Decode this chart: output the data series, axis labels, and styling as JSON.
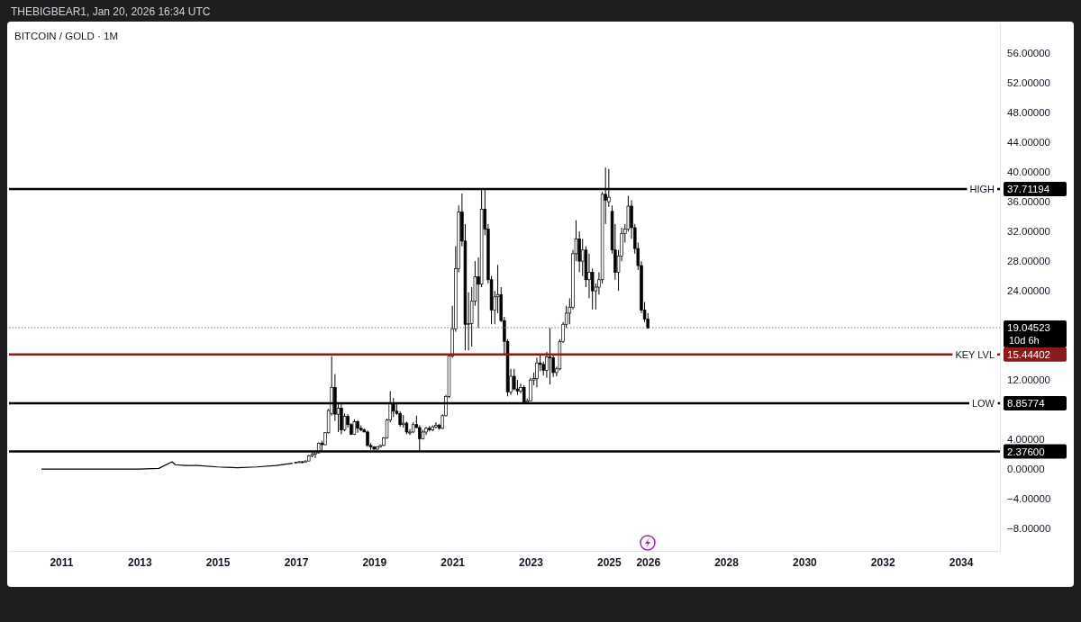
{
  "chart_data": {
    "type": "candlestick",
    "title": "BITCOIN / GOLD · 1M",
    "annotations": [
      "THEBIGBEAR1, Jan 20, 2026 16:34 UTC"
    ],
    "xlim": [
      "2009-09",
      "2035-01"
    ],
    "ylim": [
      -11,
      60
    ],
    "xticks": [
      "2011",
      "2013",
      "2015",
      "2017",
      "2019",
      "2021",
      "2023",
      "2025",
      "2026",
      "2028",
      "2030",
      "2032",
      "2034"
    ],
    "yticks": [
      {
        "value": -8,
        "label": "−8.00000"
      },
      {
        "value": -4,
        "label": "−4.00000"
      },
      {
        "value": 0,
        "label": "0.00000"
      },
      {
        "value": 4,
        "label": "4.00000"
      },
      {
        "value": 12,
        "label": "12.00000"
      },
      {
        "value": 24,
        "label": "24.00000"
      },
      {
        "value": 28,
        "label": "28.00000"
      },
      {
        "value": 32,
        "label": "32.00000"
      },
      {
        "value": 36,
        "label": "36.00000"
      },
      {
        "value": 40,
        "label": "40.00000"
      },
      {
        "value": 44,
        "label": "44.00000"
      },
      {
        "value": 48,
        "label": "48.00000"
      },
      {
        "value": 52,
        "label": "52.00000"
      },
      {
        "value": 56,
        "label": "56.00000"
      },
      {
        "value": 37.71194,
        "label": "37.71194"
      },
      {
        "value": 19.04523,
        "label": "19.04523"
      },
      {
        "value": 15.44402,
        "label": "15.44402"
      },
      {
        "value": 8.85774,
        "label": "8.85774"
      },
      {
        "value": 2.376,
        "label": "2.37600"
      }
    ],
    "ref_lines": [
      {
        "axis": "y",
        "value": 37.71194,
        "label": "HIGH",
        "color": "#000000"
      },
      {
        "axis": "y",
        "value": 15.44402,
        "label": "KEY LVL",
        "color": "#8b1a1a"
      },
      {
        "axis": "y",
        "value": 8.85774,
        "label": "LOW",
        "color": "#000000"
      },
      {
        "axis": "y",
        "value": 2.376,
        "label": null,
        "color": "#000000"
      },
      {
        "axis": "y",
        "value": 19.04523,
        "label": "10d 6h",
        "color": "#787b86",
        "line_style": "dotted"
      }
    ],
    "series": [
      {
        "type": "line",
        "color": "#000000",
        "x": [
          "2010-07",
          "2011-01",
          "2011-07",
          "2012-01",
          "2012-07",
          "2013-01",
          "2013-07",
          "2013-11",
          "2013-12",
          "2014-03",
          "2014-07",
          "2015-01",
          "2015-07",
          "2016-01",
          "2016-07",
          "2016-12"
        ],
        "values": [
          0.0,
          0.0,
          0.0,
          0.0,
          0.0,
          0.0,
          0.1,
          1.0,
          0.6,
          0.5,
          0.5,
          0.3,
          0.2,
          0.3,
          0.5,
          0.8
        ]
      },
      {
        "color": "#000000",
        "x": [
          "2017-01",
          "2017-02",
          "2017-03",
          "2017-04",
          "2017-05",
          "2017-06",
          "2017-07",
          "2017-08",
          "2017-09",
          "2017-10",
          "2017-11",
          "2017-12",
          "2018-01",
          "2018-02",
          "2018-03",
          "2018-04",
          "2018-05",
          "2018-06",
          "2018-07",
          "2018-08",
          "2018-09",
          "2018-10",
          "2018-11",
          "2018-12",
          "2019-01",
          "2019-02",
          "2019-03",
          "2019-04",
          "2019-05",
          "2019-06",
          "2019-07",
          "2019-08",
          "2019-09",
          "2019-10",
          "2019-11",
          "2019-12",
          "2020-01",
          "2020-02",
          "2020-03",
          "2020-04",
          "2020-05",
          "2020-06",
          "2020-07",
          "2020-08",
          "2020-09",
          "2020-10",
          "2020-11",
          "2020-12",
          "2021-01",
          "2021-02",
          "2021-03",
          "2021-04",
          "2021-05",
          "2021-06",
          "2021-07",
          "2021-08",
          "2021-09",
          "2021-10",
          "2021-11",
          "2021-12",
          "2022-01",
          "2022-02",
          "2022-03",
          "2022-04",
          "2022-05",
          "2022-06",
          "2022-07",
          "2022-08",
          "2022-09",
          "2022-10",
          "2022-11",
          "2022-12",
          "2023-01",
          "2023-02",
          "2023-03",
          "2023-04",
          "2023-05",
          "2023-06",
          "2023-07",
          "2023-08",
          "2023-09",
          "2023-10",
          "2023-11",
          "2023-12",
          "2024-01",
          "2024-02",
          "2024-03",
          "2024-04",
          "2024-05",
          "2024-06",
          "2024-07",
          "2024-08",
          "2024-09",
          "2024-10",
          "2024-11",
          "2024-12",
          "2025-01",
          "2025-02",
          "2025-03",
          "2025-04",
          "2025-05",
          "2025-06",
          "2025-07",
          "2025-08",
          "2025-09",
          "2025-10",
          "2025-11",
          "2025-12",
          "2026-01"
        ],
        "ohlc": [
          [
            0.85,
            1.0,
            0.8,
            0.95
          ],
          [
            0.95,
            1.1,
            0.9,
            1.0
          ],
          [
            1.0,
            1.1,
            0.8,
            0.95
          ],
          [
            0.95,
            1.2,
            0.9,
            1.1
          ],
          [
            1.1,
            1.9,
            1.05,
            1.8
          ],
          [
            1.8,
            2.3,
            1.6,
            2.0
          ],
          [
            2.0,
            2.3,
            1.5,
            2.2
          ],
          [
            2.2,
            3.6,
            2.1,
            3.5
          ],
          [
            3.5,
            3.8,
            2.4,
            3.3
          ],
          [
            3.3,
            5.0,
            3.2,
            4.9
          ],
          [
            4.9,
            8.1,
            4.8,
            7.9
          ],
          [
            7.5,
            15.2,
            7.2,
            11.0
          ],
          [
            11.0,
            12.8,
            6.5,
            7.4
          ],
          [
            7.4,
            9.0,
            5.0,
            8.2
          ],
          [
            8.2,
            8.8,
            4.7,
            5.3
          ],
          [
            5.3,
            7.5,
            5.1,
            7.1
          ],
          [
            7.1,
            7.4,
            5.6,
            6.0
          ],
          [
            6.0,
            6.2,
            4.6,
            4.7
          ],
          [
            4.7,
            6.7,
            4.6,
            6.4
          ],
          [
            6.4,
            6.6,
            4.9,
            5.5
          ],
          [
            5.5,
            5.9,
            5.1,
            5.3
          ],
          [
            5.3,
            5.5,
            5.0,
            5.0
          ],
          [
            5.0,
            5.2,
            3.0,
            3.2
          ],
          [
            3.2,
            3.5,
            2.6,
            3.0
          ],
          [
            3.0,
            3.1,
            2.6,
            2.7
          ],
          [
            2.7,
            3.1,
            2.6,
            3.0
          ],
          [
            3.0,
            3.3,
            2.9,
            3.2
          ],
          [
            3.2,
            4.3,
            3.1,
            4.2
          ],
          [
            4.2,
            6.8,
            4.1,
            6.6
          ],
          [
            6.6,
            10.5,
            6.3,
            8.8
          ],
          [
            8.8,
            9.6,
            7.0,
            7.8
          ],
          [
            7.8,
            9.0,
            7.3,
            7.5
          ],
          [
            7.5,
            7.8,
            5.7,
            6.0
          ],
          [
            6.0,
            7.3,
            5.6,
            6.2
          ],
          [
            6.2,
            6.4,
            4.7,
            5.0
          ],
          [
            5.0,
            5.4,
            4.6,
            5.0
          ],
          [
            5.0,
            6.3,
            4.9,
            6.0
          ],
          [
            6.0,
            7.2,
            5.5,
            5.6
          ],
          [
            5.6,
            5.9,
            2.4,
            4.1
          ],
          [
            4.1,
            5.3,
            4.0,
            5.0
          ],
          [
            5.0,
            5.7,
            4.6,
            5.5
          ],
          [
            5.5,
            5.8,
            5.1,
            5.3
          ],
          [
            5.3,
            5.9,
            5.1,
            5.7
          ],
          [
            5.7,
            6.3,
            5.5,
            5.9
          ],
          [
            5.9,
            6.1,
            5.3,
            5.5
          ],
          [
            5.5,
            7.4,
            5.4,
            7.2
          ],
          [
            7.2,
            10.0,
            7.1,
            9.8
          ],
          [
            9.8,
            15.4,
            9.6,
            15.2
          ],
          [
            15.2,
            22.0,
            15.0,
            18.9
          ],
          [
            18.9,
            30.0,
            18.5,
            27.0
          ],
          [
            27.0,
            35.5,
            26.5,
            34.6
          ],
          [
            34.6,
            37.1,
            30.0,
            30.7
          ],
          [
            30.7,
            33.0,
            16.0,
            19.5
          ],
          [
            19.5,
            23.8,
            16.0,
            19.6
          ],
          [
            19.6,
            24.5,
            16.5,
            22.6
          ],
          [
            22.6,
            28.0,
            22.0,
            25.9
          ],
          [
            25.9,
            28.5,
            19.0,
            24.9
          ],
          [
            24.9,
            37.7,
            24.5,
            35.0
          ],
          [
            35.0,
            37.7,
            31.5,
            32.3
          ],
          [
            32.3,
            33.0,
            25.0,
            25.5
          ],
          [
            25.5,
            26.0,
            19.5,
            21.4
          ],
          [
            21.4,
            24.0,
            19.5,
            23.2
          ],
          [
            23.2,
            27.5,
            21.0,
            23.5
          ],
          [
            23.5,
            24.5,
            19.8,
            20.0
          ],
          [
            20.0,
            20.5,
            15.5,
            17.2
          ],
          [
            17.2,
            17.5,
            9.8,
            10.4
          ],
          [
            10.4,
            13.5,
            10.0,
            12.5
          ],
          [
            12.5,
            13.5,
            10.6,
            10.8
          ],
          [
            10.8,
            12.0,
            10.0,
            10.5
          ],
          [
            10.5,
            11.5,
            10.2,
            11.0
          ],
          [
            11.0,
            11.3,
            8.8,
            9.0
          ],
          [
            9.0,
            9.5,
            8.8,
            9.2
          ],
          [
            9.2,
            12.3,
            9.1,
            12.0
          ],
          [
            12.0,
            13.0,
            11.3,
            12.2
          ],
          [
            12.2,
            15.0,
            11.0,
            14.3
          ],
          [
            14.3,
            15.5,
            13.2,
            14.1
          ],
          [
            14.1,
            14.5,
            12.6,
            13.3
          ],
          [
            13.3,
            15.8,
            12.3,
            15.1
          ],
          [
            15.1,
            19.0,
            11.4,
            15.0
          ],
          [
            15.0,
            15.3,
            12.4,
            13.0
          ],
          [
            13.0,
            13.8,
            12.5,
            13.5
          ],
          [
            13.5,
            17.5,
            13.3,
            17.2
          ],
          [
            17.2,
            19.8,
            17.0,
            19.5
          ],
          [
            19.5,
            22.0,
            19.0,
            21.0
          ],
          [
            21.0,
            23.0,
            19.5,
            21.8
          ],
          [
            21.8,
            29.5,
            21.5,
            29.0
          ],
          [
            29.0,
            33.5,
            28.0,
            31.0
          ],
          [
            31.0,
            32.0,
            26.5,
            28.0
          ],
          [
            28.0,
            31.0,
            26.0,
            29.5
          ],
          [
            29.5,
            30.0,
            24.5,
            25.5
          ],
          [
            25.5,
            29.0,
            23.0,
            26.5
          ],
          [
            26.5,
            27.0,
            21.5,
            24.0
          ],
          [
            24.0,
            25.0,
            21.5,
            24.5
          ],
          [
            24.5,
            26.5,
            23.5,
            25.5
          ],
          [
            25.5,
            37.3,
            25.0,
            37.0
          ],
          [
            37.0,
            40.6,
            33.0,
            36.2
          ],
          [
            36.0,
            40.4,
            35.3,
            36.6
          ],
          [
            34.7,
            35.5,
            29.0,
            29.5
          ],
          [
            29.5,
            33.0,
            25.5,
            26.5
          ],
          [
            26.5,
            29.5,
            24.0,
            28.7
          ],
          [
            28.7,
            32.5,
            28.0,
            31.7
          ],
          [
            31.7,
            33.0,
            30.5,
            32.3
          ],
          [
            32.3,
            36.8,
            32.0,
            35.4
          ],
          [
            35.4,
            36.2,
            31.0,
            32.5
          ],
          [
            32.5,
            33.0,
            29.0,
            29.7
          ],
          [
            29.7,
            30.5,
            26.8,
            27.4
          ],
          [
            27.4,
            28.0,
            21.0,
            21.4
          ],
          [
            21.4,
            22.5,
            19.8,
            20.2
          ],
          [
            20.2,
            21.0,
            18.9,
            19.0
          ]
        ]
      }
    ]
  }
}
